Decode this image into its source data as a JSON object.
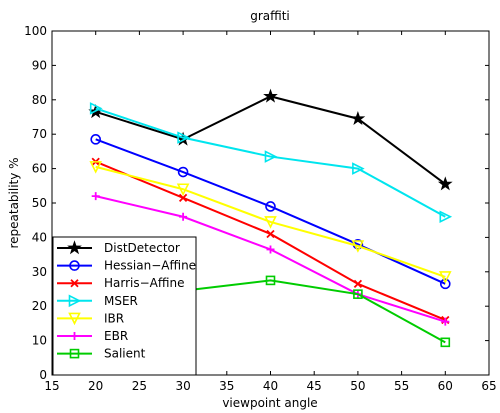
{
  "chart_data": {
    "type": "line",
    "title": "graffiti",
    "xlabel": "viewpoint angle",
    "ylabel": "repeatability %",
    "xlim": [
      15,
      65
    ],
    "ylim": [
      0,
      100
    ],
    "xticks": [
      "15",
      "20",
      "25",
      "30",
      "35",
      "40",
      "45",
      "50",
      "55",
      "60",
      "65"
    ],
    "yticks": [
      "0",
      "10",
      "20",
      "30",
      "40",
      "50",
      "60",
      "70",
      "80",
      "90",
      "100"
    ],
    "x": [
      20,
      30,
      40,
      50,
      60
    ],
    "legend_position": "bottom-left",
    "grid": false,
    "series": [
      {
        "name": "DistDetector",
        "color": "#000000",
        "marker": "star",
        "values": [
          76.5,
          68.5,
          81,
          74.5,
          55.5
        ]
      },
      {
        "name": "Hessian−Affine",
        "color": "#0000ff",
        "marker": "circle",
        "values": [
          68.5,
          59,
          49,
          38,
          26.5
        ]
      },
      {
        "name": "Harris−Affine",
        "color": "#ff0000",
        "marker": "x",
        "values": [
          62,
          51.5,
          41,
          26.5,
          16
        ]
      },
      {
        "name": "MSER",
        "color": "#00e5ee",
        "marker": "triangle-right",
        "values": [
          77.5,
          69,
          63.5,
          60,
          46
        ]
      },
      {
        "name": "IBR",
        "color": "#ffff00",
        "marker": "triangle-down",
        "values": [
          60.5,
          54,
          44.5,
          37.5,
          28.5
        ]
      },
      {
        "name": "EBR",
        "color": "#ff00ff",
        "marker": "plus",
        "values": [
          52,
          46,
          36.5,
          23.5,
          15.5
        ]
      },
      {
        "name": "Salient",
        "color": "#00cc00",
        "marker": "square",
        "values": [
          null,
          24.5,
          27.5,
          23.5,
          9.5
        ]
      }
    ]
  }
}
